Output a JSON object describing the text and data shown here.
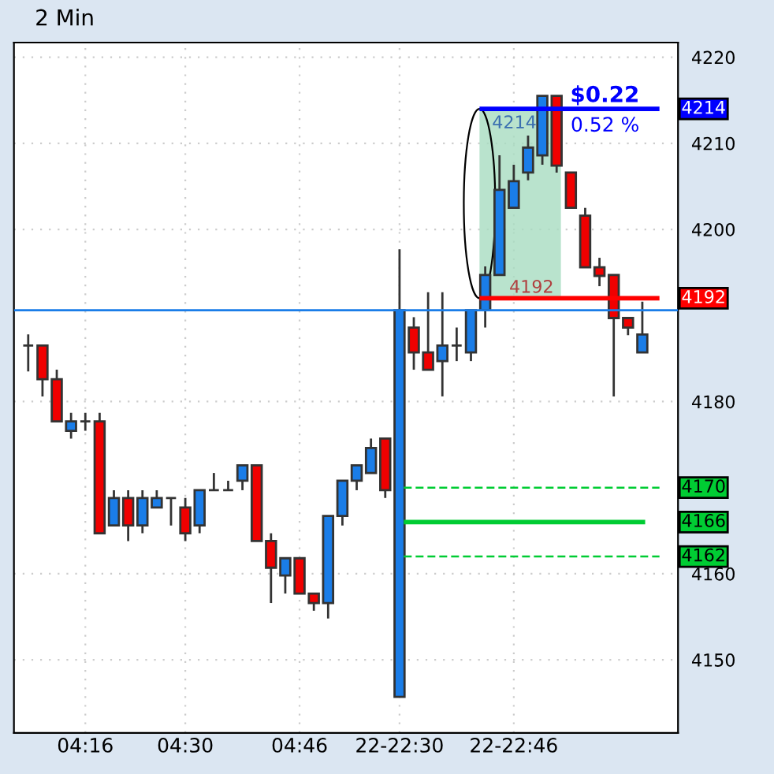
{
  "chart_data": {
    "type": "candlestick",
    "title": "2 Min",
    "categories": [
      null,
      null,
      null,
      null,
      "04:16",
      null,
      null,
      null,
      null,
      null,
      null,
      "04:30",
      null,
      null,
      null,
      null,
      null,
      null,
      null,
      "04:46",
      null,
      null,
      null,
      null,
      null,
      null,
      "22-22:30",
      null,
      null,
      null,
      null,
      null,
      null,
      null,
      "22-22:46",
      null,
      null,
      null,
      null,
      null,
      null,
      null,
      null,
      null
    ],
    "ohlc": [
      [
        4186.5,
        4187.8,
        4183.5,
        4186.5
      ],
      [
        4186.5,
        4186.5,
        4180.6,
        4182.6
      ],
      [
        4182.6,
        4183.7,
        4177.7,
        4177.7
      ],
      [
        4176.6,
        4178.7,
        4175.7,
        4177.7
      ],
      [
        4177.7,
        4178.7,
        4176.6,
        4177.7
      ],
      [
        4177.7,
        4178.7,
        4164.7,
        4164.7
      ],
      [
        4165.6,
        4169.7,
        4165.6,
        4168.8
      ],
      [
        4168.8,
        4169.7,
        4163.8,
        4165.6
      ],
      [
        4165.6,
        4169.7,
        4164.7,
        4168.8
      ],
      [
        4167.7,
        4169.7,
        4167.7,
        4168.8
      ],
      [
        4168.8,
        4168.8,
        4165.6,
        4168.8
      ],
      [
        4167.7,
        4168.8,
        4163.8,
        4164.7
      ],
      [
        4165.6,
        4169.7,
        4164.7,
        4169.7
      ],
      [
        4169.7,
        4171.7,
        4169.7,
        4169.7
      ],
      [
        4169.7,
        4170.8,
        4169.7,
        4169.7
      ],
      [
        4170.8,
        4172.6,
        4169.7,
        4172.6
      ],
      [
        4172.6,
        4172.6,
        4163.8,
        4163.8
      ],
      [
        4163.8,
        4164.7,
        4156.6,
        4160.7
      ],
      [
        4159.8,
        4161.8,
        4157.7,
        4161.8
      ],
      [
        4161.8,
        4161.8,
        4157.7,
        4157.7
      ],
      [
        4157.7,
        4157.7,
        4155.7,
        4156.6
      ],
      [
        4156.6,
        4166.7,
        4154.8,
        4166.7
      ],
      [
        4166.7,
        4170.8,
        4165.6,
        4170.8
      ],
      [
        4170.8,
        4172.6,
        4169.7,
        4172.6
      ],
      [
        4171.7,
        4175.7,
        4171.7,
        4174.6
      ],
      [
        4175.7,
        4175.7,
        4168.8,
        4169.7
      ],
      [
        4145.7,
        4197.7,
        4145.7,
        4190.6
      ],
      [
        4188.6,
        4189.8,
        4183.7,
        4185.7
      ],
      [
        4185.7,
        4192.7,
        4183.7,
        4183.7
      ],
      [
        4184.7,
        4192.7,
        4180.6,
        4186.5
      ],
      [
        4186.5,
        4188.6,
        4184.7,
        4186.5
      ],
      [
        4185.7,
        4190.6,
        4184.7,
        4190.6
      ],
      [
        4190.6,
        4195.7,
        4188.6,
        4194.7
      ],
      [
        4194.7,
        4208.6,
        4194.7,
        4204.6
      ],
      [
        4202.5,
        4207.5,
        4202.5,
        4205.6
      ],
      [
        4206.6,
        4210.9,
        4205.7,
        4209.5
      ],
      [
        4208.6,
        4215.5,
        4207.5,
        4215.5
      ],
      [
        4215.5,
        4215.5,
        4206.6,
        4207.4
      ],
      [
        4206.6,
        4206.6,
        4202.5,
        4202.5
      ],
      [
        4201.6,
        4202.5,
        4195.6,
        4195.6
      ],
      [
        4195.6,
        4196.7,
        4193.4,
        4194.6
      ],
      [
        4194.7,
        4194.7,
        4180.6,
        4189.7
      ],
      [
        4189.7,
        4189.7,
        4187.7,
        4188.6
      ],
      [
        4185.7,
        4191.6,
        4185.7,
        4187.8
      ]
    ],
    "colors": [
      "#333333",
      "#f00000",
      "#f00000",
      "#1a7de8",
      "#333333",
      "#f00000",
      "#1a7de8",
      "#f00000",
      "#1a7de8",
      "#1a7de8",
      "#333333",
      "#f00000",
      "#1a7de8",
      "#333333",
      "#333333",
      "#1a7de8",
      "#f00000",
      "#f00000",
      "#1a7de8",
      "#f00000",
      "#f00000",
      "#1a7de8",
      "#1a7de8",
      "#1a7de8",
      "#1a7de8",
      "#f00000",
      "#1a7de8",
      "#f00000",
      "#f00000",
      "#1a7de8",
      "#333333",
      "#1a7de8",
      "#1a7de8",
      "#1a7de8",
      "#1a7de8",
      "#1a7de8",
      "#1a7de8",
      "#f00000",
      "#f00000",
      "#f00000",
      "#f00000",
      "#f00000",
      "#f00000",
      "#1a7de8"
    ],
    "ylim": [
      4141.5,
      4221.7
    ],
    "yticks": [
      4150,
      4160,
      4180,
      4200,
      4210,
      4220
    ],
    "grid": true,
    "ref_lines": [
      {
        "axis": "y",
        "value": 4214,
        "label": "4214",
        "color": "#0000ff",
        "line_style": "solid"
      },
      {
        "axis": "y",
        "value": 4192,
        "label": "4192",
        "color": "#ff0000",
        "line_style": "solid"
      },
      {
        "axis": "y",
        "value": 4190.6,
        "label": null,
        "color": "#1a7de8",
        "line_style": "solid"
      },
      {
        "axis": "y",
        "value": 4170,
        "label": "4170",
        "color": "#00cc33",
        "line_style": "dashed"
      },
      {
        "axis": "y",
        "value": 4166,
        "label": "4166",
        "color": "#00cc33",
        "line_style": "solid"
      },
      {
        "axis": "y",
        "value": 4162,
        "label": "4162",
        "color": "#00cc33",
        "line_style": "dashed"
      }
    ],
    "bands": [
      {
        "axis": "y",
        "from": 4192,
        "to": 4214,
        "color": "#a8dcc0"
      }
    ],
    "annotations": [
      "$0.22",
      "0.52 %",
      "4214",
      "4192"
    ]
  }
}
